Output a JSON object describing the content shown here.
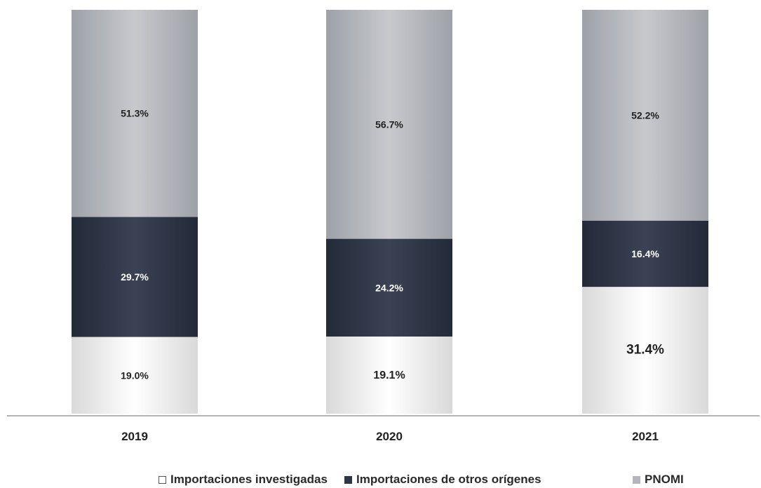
{
  "chart_data": {
    "type": "bar",
    "stacked": true,
    "percent_stacked": true,
    "categories": [
      "2019",
      "2020",
      "2021"
    ],
    "series": [
      {
        "name": "Importaciones investigadas",
        "values": [
          19.0,
          19.1,
          31.4
        ],
        "labels": [
          "19.0%",
          "19.1%",
          "31.4%"
        ],
        "color": "#f4f4f4"
      },
      {
        "name": "Importaciones de otros orígenes",
        "values": [
          29.7,
          24.2,
          16.4
        ],
        "labels": [
          "29.7%",
          "24.2%",
          "16.4%"
        ],
        "color": "#2e3545"
      },
      {
        "name": "PNOMI",
        "values": [
          51.3,
          56.7,
          52.2
        ],
        "labels": [
          "51.3%",
          "56.7%",
          "52.2%"
        ],
        "color": "#b4b6bb"
      }
    ],
    "title": "",
    "xlabel": "",
    "ylabel": "",
    "ylim": [
      0,
      100
    ],
    "grid": false,
    "legend_position": "bottom"
  },
  "legend": {
    "items": [
      {
        "label": "Importaciones investigadas"
      },
      {
        "label": "Importaciones de otros orígenes"
      },
      {
        "label": "PNOMI"
      }
    ]
  },
  "colors": {
    "investigadas": "#f4f4f4",
    "otros": "#2e3545",
    "pnomi": "#b4b6bb",
    "axis": "#9a9a9a"
  }
}
